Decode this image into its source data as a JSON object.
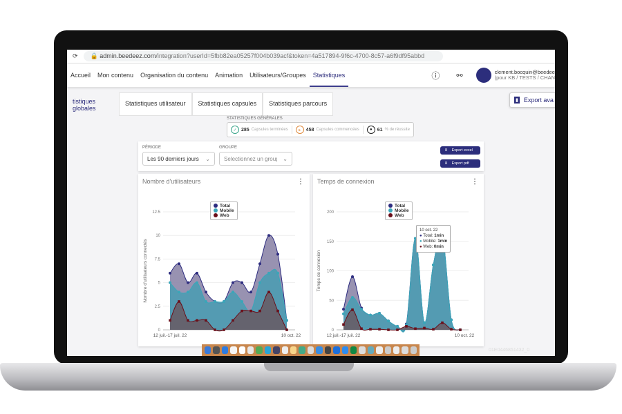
{
  "browser": {
    "url_host": "admin.beedeez.com",
    "url_path": "/integration?userId=5fbb82ea05257f004b039acf&token=4a517894-9f6c-4700-8c57-a6f9df95abbd"
  },
  "nav": {
    "items": [
      "Accueil",
      "Mon contenu",
      "Organisation du contenu",
      "Animation",
      "Utilisateurs/Groupes",
      "Statistiques"
    ],
    "active": "Statistiques",
    "user_name": "clement.bocquin@beedee",
    "user_sub": "(pour KB / TESTS / CHAN"
  },
  "tabs": [
    "tistiques globales",
    "Statistiques utilisateur",
    "Statistiques capsules",
    "Statistiques parcours"
  ],
  "export_button": "Export ava",
  "stats": {
    "title": "STATISTIQUES GÉNÉRALES",
    "items": [
      {
        "value": "285",
        "label": "Capsules terminées",
        "color": "#3aa58a"
      },
      {
        "value": "458",
        "label": "Capsules commencées",
        "color": "#e08a3c"
      },
      {
        "value": "61",
        "label": "% de réussite",
        "color": "#222222"
      }
    ]
  },
  "filters": {
    "period_label": "PÉRIODE",
    "period_value": "Les 90 derniers jours",
    "group_label": "GROUPE",
    "group_placeholder": "Selectionnez un groupe",
    "export_excel": "Export excel",
    "export_pdf": "Export pdf"
  },
  "colors": {
    "total": "#2e2d80",
    "mobile": "#3aa6b9",
    "web": "#6b0f1a",
    "accent": "#2c2e7c"
  },
  "dock_label": "01E0446851432_0",
  "chart_data": [
    {
      "type": "area",
      "title": "Nombre d'utilisateurs",
      "ylabel": "Nombre d'utilisateurs connectés",
      "ylim": [
        0,
        12.5
      ],
      "yticks": [
        "0",
        "2.5",
        "5",
        "7.5",
        "10",
        "12.5"
      ],
      "xticks": [
        "12 juil.-17 juil. 22",
        "10 oct. 22"
      ],
      "legend": [
        "Total",
        "Mobile",
        "Web"
      ],
      "series": [
        {
          "name": "Total",
          "values": [
            6,
            7,
            5,
            6,
            4,
            3,
            3,
            5,
            5,
            4,
            7,
            10,
            8,
            1
          ]
        },
        {
          "name": "Mobile",
          "values": [
            5,
            4,
            4,
            5,
            3,
            3,
            3,
            4,
            3,
            2,
            5,
            6,
            6,
            1
          ]
        },
        {
          "name": "Web",
          "values": [
            1,
            3,
            1,
            1,
            1,
            0,
            0,
            1,
            2,
            2,
            2,
            4,
            2,
            0
          ]
        }
      ]
    },
    {
      "type": "area",
      "title": "Temps de connexion",
      "ylabel": "Temps de connexion",
      "ylim": [
        0,
        200
      ],
      "yticks": [
        "0",
        "50",
        "100",
        "150",
        "200"
      ],
      "xticks": [
        "12 juil.-17 juil. 22",
        "10 oct. 22"
      ],
      "legend": [
        "Total",
        "Mobile",
        "Web"
      ],
      "series": [
        {
          "name": "Total",
          "values": [
            35,
            90,
            37,
            25,
            28,
            15,
            6,
            10,
            155,
            12,
            110,
            160,
            17,
            0
          ]
        },
        {
          "name": "Mobile",
          "values": [
            27,
            55,
            35,
            25,
            28,
            15,
            6,
            8,
            155,
            12,
            110,
            160,
            17,
            0
          ]
        },
        {
          "name": "Web",
          "values": [
            9,
            34,
            2,
            1,
            1,
            0,
            0,
            6,
            2,
            3,
            1,
            12,
            1,
            0
          ]
        }
      ],
      "tooltip": {
        "date": "10 oct. 22",
        "lines": [
          {
            "k": "Total:",
            "v": "1min"
          },
          {
            "k": "Mobile:",
            "v": "1min"
          },
          {
            "k": "Web:",
            "v": "0min"
          }
        ]
      }
    }
  ]
}
